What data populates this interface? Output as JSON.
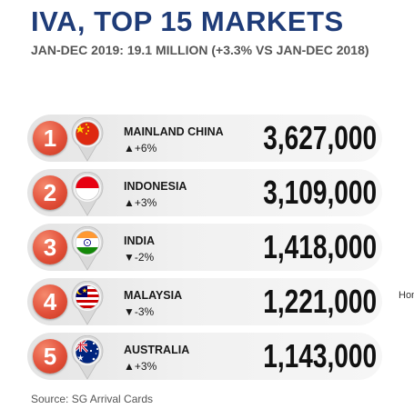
{
  "header": {
    "title": "IVA, TOP 15 MARKETS",
    "subtitle": "JAN-DEC 2019: 19.1 MILLION (+3.3% VS JAN-DEC 2018)"
  },
  "chart_data": {
    "type": "table",
    "title": "IVA, TOP 15 MARKETS",
    "subtitle": "JAN-DEC 2019: 19.1 MILLION (+3.3% VS JAN-DEC 2018)",
    "rows": [
      {
        "rank": "1",
        "country": "MAINLAND CHINA",
        "change": "+6%",
        "direction": "up",
        "value": "3,627,000",
        "value_num": 3627000,
        "flag": "china-flag"
      },
      {
        "rank": "2",
        "country": "INDONESIA",
        "change": "+3%",
        "direction": "up",
        "value": "3,109,000",
        "value_num": 3109000,
        "flag": "indonesia-flag"
      },
      {
        "rank": "3",
        "country": "INDIA",
        "change": "-2%",
        "direction": "down",
        "value": "1,418,000",
        "value_num": 1418000,
        "flag": "india-flag"
      },
      {
        "rank": "4",
        "country": "MALAYSIA",
        "change": "-3%",
        "direction": "down",
        "value": "1,221,000",
        "value_num": 1221000,
        "flag": "malaysia-flag"
      },
      {
        "rank": "5",
        "country": "AUSTRALIA",
        "change": "+3%",
        "direction": "up",
        "value": "1,143,000",
        "value_num": 1143000,
        "flag": "australia-flag"
      }
    ],
    "colors": {
      "title": "#1f3c78",
      "rank_badge": "#e2503a"
    }
  },
  "cut_text": "Hon",
  "source": "Source: SG Arrival Cards"
}
